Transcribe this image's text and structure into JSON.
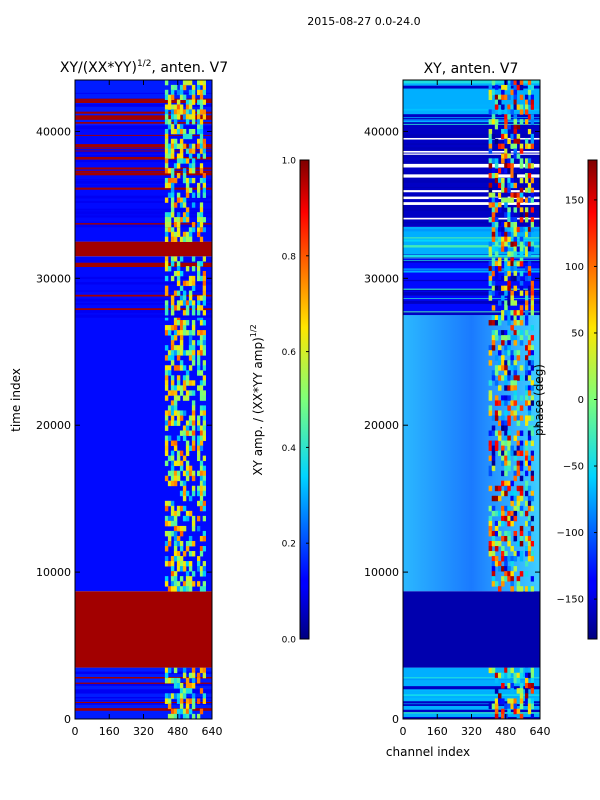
{
  "figure": {
    "suptitle": "2015-08-27 0.0-24.0"
  },
  "chart_data": [
    {
      "type": "heatmap",
      "title": "XY/(XX*YY)",
      "title_exponent": "1/2",
      "title_suffix": ", anten. V7",
      "xlabel": "",
      "ylabel": "time index",
      "xlim": [
        0,
        640
      ],
      "ylim": [
        0,
        43500
      ],
      "xticks": [
        "0",
        "160",
        "320",
        "480",
        "640"
      ],
      "yticks": [
        "0",
        "10000",
        "20000",
        "30000",
        "40000"
      ],
      "ytick_values": [
        0,
        10000,
        20000,
        30000,
        40000
      ],
      "bands": [
        {
          "from": 0,
          "to": 3500,
          "fill": "mixed-blue"
        },
        {
          "from": 3500,
          "to": 8700,
          "fill": "saturated"
        },
        {
          "from": 8700,
          "to": 27500,
          "fill": "blue"
        },
        {
          "from": 27500,
          "to": 31500,
          "fill": "striped"
        },
        {
          "from": 31500,
          "to": 32500,
          "fill": "saturated"
        },
        {
          "from": 32500,
          "to": 33500,
          "fill": "blue"
        },
        {
          "from": 33500,
          "to": 40500,
          "fill": "striped"
        },
        {
          "from": 40500,
          "to": 43500,
          "fill": "mixed-blue"
        }
      ],
      "active_channels": [
        [
          420,
          560
        ],
        [
          570,
          610
        ]
      ],
      "colorbar": {
        "label": "XY amp. / (XX*YY amp)",
        "label_exponent": "1/2",
        "ticks": [
          "0.0",
          "0.2",
          "0.4",
          "0.6",
          "0.8",
          "1.0"
        ],
        "tick_values": [
          0.0,
          0.2,
          0.4,
          0.6,
          0.8,
          1.0
        ],
        "range": [
          0.0,
          1.0
        ]
      }
    },
    {
      "type": "heatmap",
      "title": "XY, anten. V7",
      "xlabel": "channel index",
      "ylabel": "",
      "xlim": [
        0,
        640
      ],
      "ylim": [
        0,
        43500
      ],
      "xticks": [
        "0",
        "160",
        "320",
        "480",
        "640"
      ],
      "yticks": [
        "0",
        "10000",
        "20000",
        "30000",
        "40000"
      ],
      "ytick_values": [
        0,
        10000,
        20000,
        30000,
        40000
      ],
      "bands": [
        {
          "from": 0,
          "to": 3500,
          "fill": "mixed"
        },
        {
          "from": 3500,
          "to": 8700,
          "fill": "dark"
        },
        {
          "from": 8700,
          "to": 27500,
          "fill": "gradient"
        },
        {
          "from": 27500,
          "to": 31500,
          "fill": "striped"
        },
        {
          "from": 31500,
          "to": 33500,
          "fill": "mixed"
        },
        {
          "from": 33500,
          "to": 40500,
          "fill": "striped-dark"
        },
        {
          "from": 40500,
          "to": 43500,
          "fill": "mixed"
        }
      ],
      "active_channels": [
        [
          400,
          560
        ],
        [
          570,
          610
        ]
      ],
      "colorbar": {
        "label": "phase (deg)",
        "ticks": [
          "−150",
          "−100",
          "−50",
          "0",
          "50",
          "100",
          "150"
        ],
        "tick_values": [
          -150,
          -100,
          -50,
          0,
          50,
          100,
          150
        ],
        "range": [
          -180,
          180
        ]
      }
    }
  ]
}
